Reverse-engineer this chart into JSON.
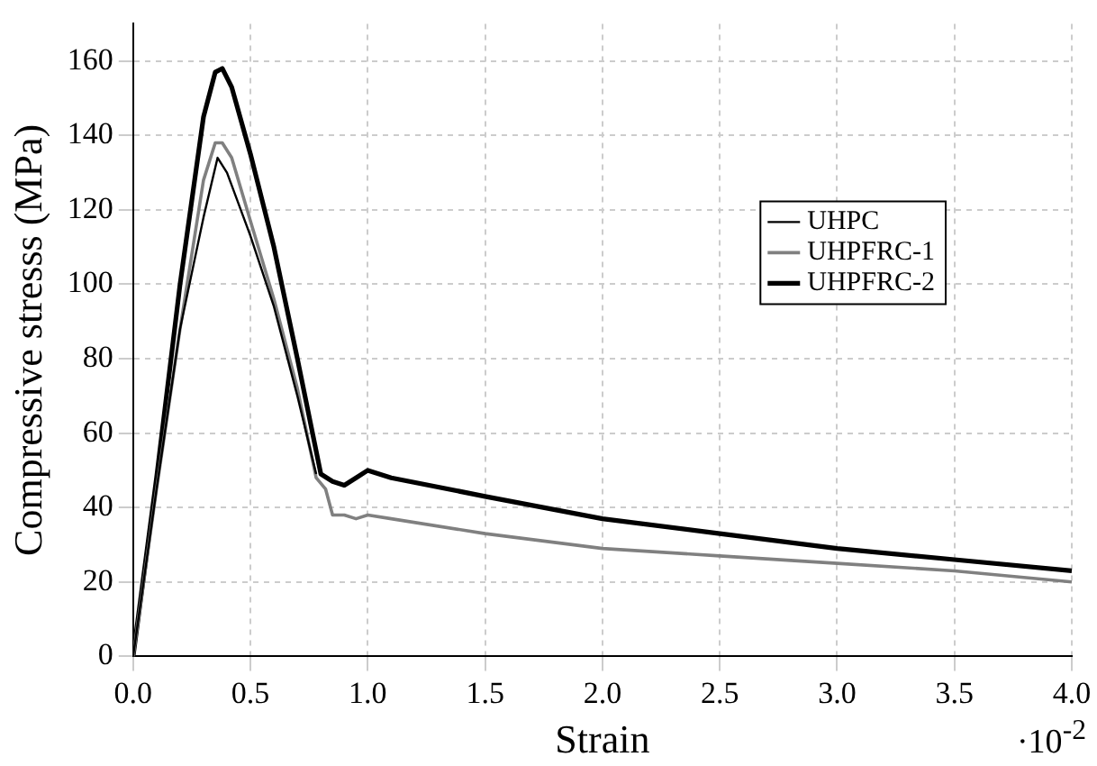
{
  "chart_data": {
    "type": "line",
    "xlabel": "Strain",
    "ylabel": "Compressive stresss (MPa)",
    "annotations": [
      "·10$^{-2}$"
    ],
    "xlim": [
      0,
      4
    ],
    "xticks": [
      {
        "value": 0,
        "label": "0.0"
      },
      {
        "value": 0.5,
        "label": "0.5"
      },
      {
        "value": 1,
        "label": "1.0"
      },
      {
        "value": 1.5,
        "label": "1.5"
      },
      {
        "value": 2,
        "label": "2.0"
      },
      {
        "value": 2.5,
        "label": "2.5"
      },
      {
        "value": 3,
        "label": "3.0"
      },
      {
        "value": 3.5,
        "label": "3.5"
      },
      {
        "value": 4,
        "label": "4.0"
      }
    ],
    "ylim": [
      0,
      170
    ],
    "yticks": [
      0,
      20,
      40,
      60,
      80,
      100,
      120,
      140,
      160
    ],
    "grid": true,
    "legend": "right",
    "marker": "none",
    "line_style": "solid",
    "series": [
      {
        "name": "UHPC",
        "color": "#000000",
        "x": [
          0,
          0.1,
          0.2,
          0.3,
          0.36,
          0.4,
          0.5,
          0.6,
          0.7,
          0.78
        ],
        "values": [
          0,
          45,
          88,
          118,
          134,
          130,
          113,
          94,
          70,
          49
        ]
      },
      {
        "name": "UHPFRC-1",
        "color": "#808080",
        "x": [
          0,
          0.1,
          0.2,
          0.3,
          0.35,
          0.38,
          0.42,
          0.5,
          0.6,
          0.7,
          0.78,
          0.82,
          0.85,
          0.9,
          0.95,
          1.0,
          1.1,
          1.5,
          2.0,
          2.5,
          3.0,
          3.5,
          4.0
        ],
        "values": [
          0,
          45,
          88,
          128,
          138,
          138,
          134,
          117,
          96,
          72,
          48,
          45,
          38,
          38,
          37,
          38,
          37,
          33,
          29,
          27,
          25,
          23,
          20
        ]
      },
      {
        "name": "UHPFRC-2",
        "color": "#000000",
        "x": [
          0,
          0.1,
          0.2,
          0.3,
          0.35,
          0.38,
          0.42,
          0.5,
          0.6,
          0.7,
          0.8,
          0.85,
          0.9,
          0.95,
          1.0,
          1.1,
          1.5,
          2.0,
          2.5,
          3.0,
          3.5,
          4.0
        ],
        "values": [
          0,
          48,
          100,
          145,
          157,
          158,
          153,
          135,
          110,
          80,
          49,
          47,
          46,
          48,
          50,
          48,
          43,
          37,
          33,
          29,
          26,
          23
        ]
      }
    ]
  }
}
